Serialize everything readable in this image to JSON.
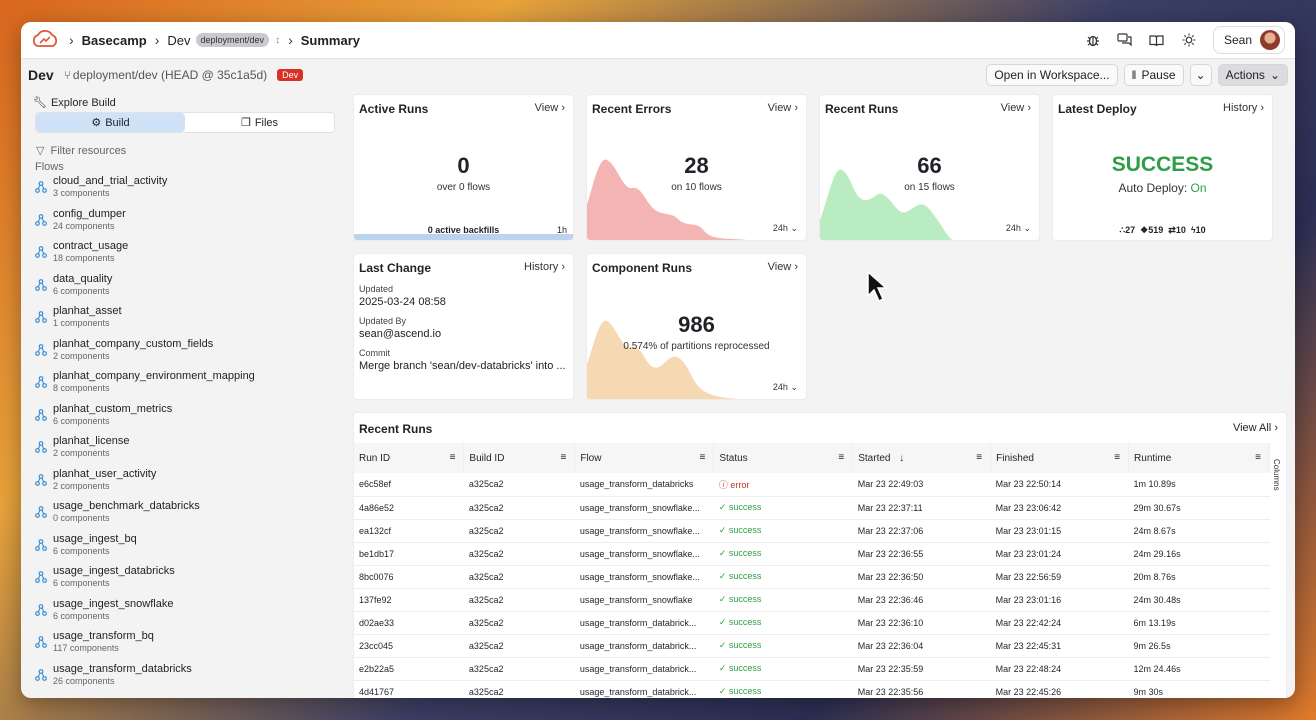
{
  "breadcrumb": {
    "items": [
      "Basecamp",
      "Dev",
      "Summary"
    ],
    "dev_tag": "deployment/dev"
  },
  "header": {
    "user_name": "Sean"
  },
  "subbar": {
    "title": "Dev",
    "branch": "deployment/dev (HEAD @ 35c1a5d)",
    "badge": "Dev",
    "open_workspace": "Open in Workspace...",
    "pause": "Pause",
    "actions": "Actions"
  },
  "sidebar": {
    "explore_label": "Explore Build",
    "tab_build": "Build",
    "tab_files": "Files",
    "filter_placeholder": "Filter resources",
    "flows_label": "Flows",
    "flows": [
      {
        "name": "cloud_and_trial_activity",
        "sub": "3 components"
      },
      {
        "name": "config_dumper",
        "sub": "24 components"
      },
      {
        "name": "contract_usage",
        "sub": "18 components"
      },
      {
        "name": "data_quality",
        "sub": "6 components"
      },
      {
        "name": "planhat_asset",
        "sub": "1 components"
      },
      {
        "name": "planhat_company_custom_fields",
        "sub": "2 components"
      },
      {
        "name": "planhat_company_environment_mapping",
        "sub": "8 components"
      },
      {
        "name": "planhat_custom_metrics",
        "sub": "6 components"
      },
      {
        "name": "planhat_license",
        "sub": "2 components"
      },
      {
        "name": "planhat_user_activity",
        "sub": "2 components"
      },
      {
        "name": "usage_benchmark_databricks",
        "sub": "0 components"
      },
      {
        "name": "usage_ingest_bq",
        "sub": "6 components"
      },
      {
        "name": "usage_ingest_databricks",
        "sub": "6 components"
      },
      {
        "name": "usage_ingest_snowflake",
        "sub": "6 components"
      },
      {
        "name": "usage_transform_bq",
        "sub": "117 components"
      },
      {
        "name": "usage_transform_databricks",
        "sub": "26 components"
      }
    ]
  },
  "cards": {
    "active_runs": {
      "title": "Active Runs",
      "link": "View",
      "value": "0",
      "sub": "over 0 flows",
      "footer_left": "0 active backfills",
      "footer_right": "1h"
    },
    "recent_errors": {
      "title": "Recent Errors",
      "link": "View",
      "value": "28",
      "sub": "on 10 flows",
      "footer": "24h",
      "color": "#f4b4b4"
    },
    "recent_runs": {
      "title": "Recent Runs",
      "link": "View",
      "value": "66",
      "sub": "on 15 flows",
      "footer": "24h",
      "color": "#b9ecc0"
    },
    "latest_deploy": {
      "title": "Latest Deploy",
      "link": "History",
      "status": "SUCCESS",
      "auto_label": "Auto Deploy:",
      "auto_value": "On",
      "stats": [
        "27",
        "519",
        "10",
        "10"
      ]
    },
    "last_change": {
      "title": "Last Change",
      "link": "History",
      "updated_label": "Updated",
      "updated_value": "2025-03-24 08:58",
      "by_label": "Updated By",
      "by_value": "sean@ascend.io",
      "commit_label": "Commit",
      "commit_value": "Merge branch 'sean/dev-databricks' into ..."
    },
    "component_runs": {
      "title": "Component Runs",
      "link": "View",
      "value": "986",
      "sub": "0.574% of partitions reprocessed",
      "footer": "24h",
      "color": "#f6d8b3"
    }
  },
  "recent_runs_table": {
    "title": "Recent Runs",
    "view_all": "View All",
    "columns_label": "Columns",
    "headers": [
      "Run ID",
      "Build ID",
      "Flow",
      "Status",
      "Started",
      "Finished",
      "Runtime"
    ],
    "rows": [
      [
        "e6c58ef",
        "a325ca2",
        "usage_transform_databricks",
        "error",
        "Mar 23 22:49:03",
        "Mar 23 22:50:14",
        "1m 10.89s"
      ],
      [
        "4a86e52",
        "a325ca2",
        "usage_transform_snowflake...",
        "success",
        "Mar 23 22:37:11",
        "Mar 23 23:06:42",
        "29m 30.67s"
      ],
      [
        "ea132cf",
        "a325ca2",
        "usage_transform_snowflake...",
        "success",
        "Mar 23 22:37:06",
        "Mar 23 23:01:15",
        "24m 8.67s"
      ],
      [
        "be1db17",
        "a325ca2",
        "usage_transform_snowflake...",
        "success",
        "Mar 23 22:36:55",
        "Mar 23 23:01:24",
        "24m 29.16s"
      ],
      [
        "8bc0076",
        "a325ca2",
        "usage_transform_snowflake...",
        "success",
        "Mar 23 22:36:50",
        "Mar 23 22:56:59",
        "20m 8.76s"
      ],
      [
        "137fe92",
        "a325ca2",
        "usage_transform_snowflake",
        "success",
        "Mar 23 22:36:46",
        "Mar 23 23:01:16",
        "24m 30.48s"
      ],
      [
        "d02ae33",
        "a325ca2",
        "usage_transform_databrick...",
        "success",
        "Mar 23 22:36:10",
        "Mar 23 22:42:24",
        "6m 13.19s"
      ],
      [
        "23cc045",
        "a325ca2",
        "usage_transform_databrick...",
        "success",
        "Mar 23 22:36:04",
        "Mar 23 22:45:31",
        "9m 26.5s"
      ],
      [
        "e2b22a5",
        "a325ca2",
        "usage_transform_databrick...",
        "success",
        "Mar 23 22:35:59",
        "Mar 23 22:48:24",
        "12m 24.46s"
      ],
      [
        "4d41767",
        "a325ca2",
        "usage_transform_databrick...",
        "success",
        "Mar 23 22:35:56",
        "Mar 23 22:45:26",
        "9m 30s"
      ]
    ]
  }
}
